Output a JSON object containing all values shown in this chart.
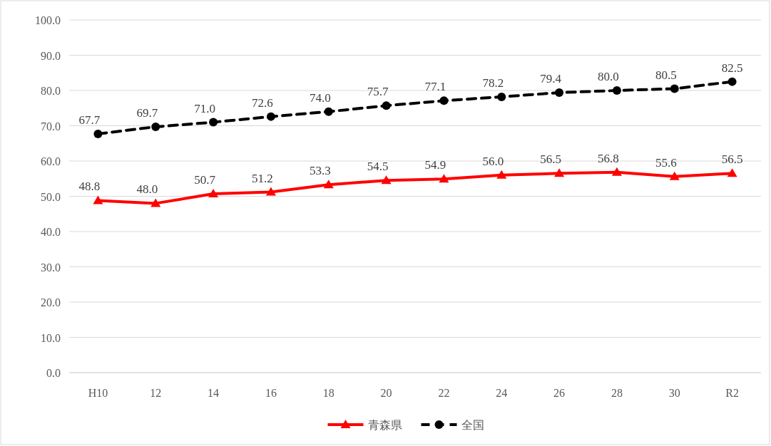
{
  "chart_data": {
    "type": "line",
    "categories": [
      "H10",
      "12",
      "14",
      "16",
      "18",
      "20",
      "22",
      "24",
      "26",
      "28",
      "30",
      "R2"
    ],
    "ylim": [
      0,
      100
    ],
    "yticks": [
      {
        "value": 0,
        "label": "0.0"
      },
      {
        "value": 10,
        "label": "10.0"
      },
      {
        "value": 20,
        "label": "20.0"
      },
      {
        "value": 30,
        "label": "30.0"
      },
      {
        "value": 40,
        "label": "40.0"
      },
      {
        "value": 50,
        "label": "50.0"
      },
      {
        "value": 60,
        "label": "60.0"
      },
      {
        "value": 70,
        "label": "70.0"
      },
      {
        "value": 80,
        "label": "80.0"
      },
      {
        "value": 90,
        "label": "90.0"
      },
      {
        "value": 100,
        "label": "100.0"
      }
    ],
    "grid": "y",
    "legend": "bottom",
    "series": [
      {
        "name": "青森県",
        "color": "#ff0000",
        "marker": "triangle",
        "line_style": "solid",
        "values": [
          48.8,
          48.0,
          50.7,
          51.2,
          53.3,
          54.5,
          54.9,
          56.0,
          56.5,
          56.8,
          55.6,
          56.5
        ],
        "value_labels": [
          "48.8",
          "48.0",
          "50.7",
          "51.2",
          "53.3",
          "54.5",
          "54.9",
          "56.0",
          "56.5",
          "56.8",
          "55.6",
          "56.5"
        ]
      },
      {
        "name": "全国",
        "color": "#000000",
        "marker": "circle",
        "line_style": "dashed",
        "values": [
          67.7,
          69.7,
          71.0,
          72.6,
          74.0,
          75.7,
          77.1,
          78.2,
          79.4,
          80.0,
          80.5,
          82.5
        ],
        "value_labels": [
          "67.7",
          "69.7",
          "71.0",
          "72.6",
          "74.0",
          "75.7",
          "77.1",
          "78.2",
          "79.4",
          "80.0",
          "80.5",
          "82.5"
        ]
      }
    ]
  }
}
